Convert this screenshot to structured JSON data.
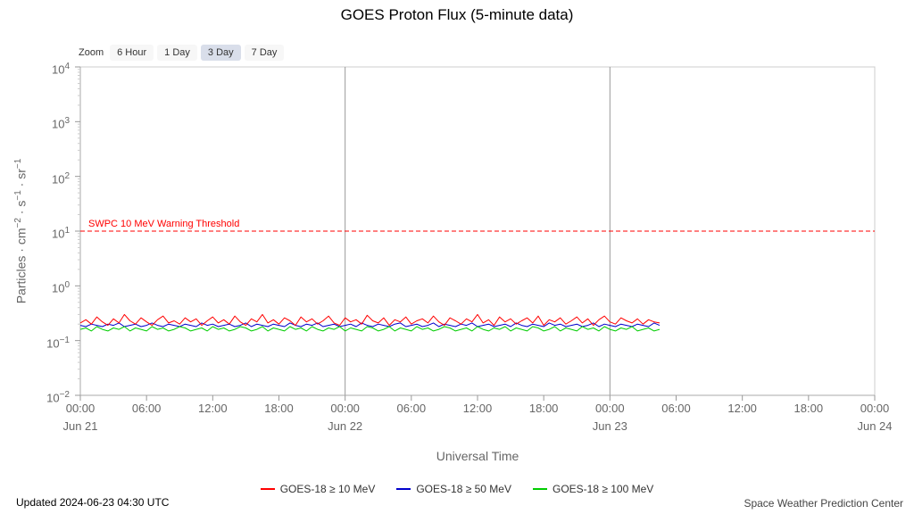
{
  "header": {
    "title": "GOES Proton Flux (5-minute data)"
  },
  "zoom": {
    "label": "Zoom",
    "buttons": [
      {
        "label": "6 Hour",
        "selected": false
      },
      {
        "label": "1 Day",
        "selected": false
      },
      {
        "label": "3 Day",
        "selected": true
      },
      {
        "label": "7 Day",
        "selected": false
      }
    ]
  },
  "footer": {
    "updated": "Updated 2024-06-23 04:30 UTC",
    "source": "Space Weather Prediction Center"
  },
  "chart_data": {
    "type": "line",
    "title": "GOES Proton Flux (5-minute data)",
    "xlabel": "Universal Time",
    "ylabel_tokens": [
      {
        "t": "Particles · cm"
      },
      {
        "t": "−2",
        "sup": true
      },
      {
        "t": " · s"
      },
      {
        "t": "−1",
        "sup": true
      },
      {
        "t": " · sr"
      },
      {
        "t": "−1",
        "sup": true
      }
    ],
    "y_scale": "log",
    "ylim": [
      0.01,
      10000
    ],
    "ylim_exp": [
      -2,
      4
    ],
    "y_ticks": [
      {
        "exp": 4
      },
      {
        "exp": 3
      },
      {
        "exp": 2
      },
      {
        "exp": 1
      },
      {
        "exp": 0
      },
      {
        "exp": -1
      },
      {
        "exp": -2
      }
    ],
    "x_range_hours": [
      0,
      72
    ],
    "x_tick_hours": [
      0,
      6,
      12,
      18,
      24,
      30,
      36,
      42,
      48,
      54,
      60,
      66,
      72
    ],
    "x_tick_labels": [
      "00:00",
      "06:00",
      "12:00",
      "18:00",
      "00:00",
      "06:00",
      "12:00",
      "18:00",
      "00:00",
      "06:00",
      "12:00",
      "18:00",
      "00:00"
    ],
    "x_date_ticks": [
      {
        "hour": 0,
        "label": "Jun 21"
      },
      {
        "hour": 24,
        "label": "Jun 22"
      },
      {
        "hour": 48,
        "label": "Jun 23"
      },
      {
        "hour": 72,
        "label": "Jun 24"
      }
    ],
    "day_gridlines_hours": [
      24,
      48
    ],
    "threshold": {
      "value": 10,
      "label": "SWPC 10 MeV Warning Threshold",
      "color": "#ff0000",
      "style": "dashed"
    },
    "legend_position": "bottom",
    "grid": "day-boundaries-only",
    "x_start_hours": 0,
    "x_step_hours": 0.5,
    "series": [
      {
        "name": "GOES-18 ≥ 10 MeV",
        "color": "#ff0000",
        "values": [
          0.21,
          0.24,
          0.2,
          0.27,
          0.22,
          0.19,
          0.25,
          0.21,
          0.3,
          0.23,
          0.2,
          0.26,
          0.22,
          0.19,
          0.24,
          0.28,
          0.21,
          0.23,
          0.2,
          0.26,
          0.22,
          0.25,
          0.19,
          0.23,
          0.27,
          0.21,
          0.24,
          0.2,
          0.28,
          0.22,
          0.19,
          0.25,
          0.22,
          0.3,
          0.21,
          0.24,
          0.2,
          0.26,
          0.23,
          0.19,
          0.27,
          0.22,
          0.25,
          0.2,
          0.23,
          0.28,
          0.21,
          0.19,
          0.26,
          0.22,
          0.24,
          0.2,
          0.29,
          0.23,
          0.21,
          0.26,
          0.19,
          0.24,
          0.22,
          0.27,
          0.2,
          0.23,
          0.25,
          0.21,
          0.28,
          0.22,
          0.19,
          0.26,
          0.23,
          0.2,
          0.25,
          0.22,
          0.3,
          0.21,
          0.24,
          0.19,
          0.27,
          0.22,
          0.25,
          0.2,
          0.23,
          0.26,
          0.21,
          0.28,
          0.19,
          0.24,
          0.22,
          0.26,
          0.2,
          0.23,
          0.27,
          0.21,
          0.25,
          0.19,
          0.24,
          0.28,
          0.22,
          0.2,
          0.26,
          0.23,
          0.21,
          0.25,
          0.2,
          0.24,
          0.22,
          0.21
        ]
      },
      {
        "name": "GOES-18 ≥ 50 MeV",
        "color": "#0000cc",
        "values": [
          0.19,
          0.18,
          0.2,
          0.19,
          0.18,
          0.2,
          0.19,
          0.21,
          0.18,
          0.19,
          0.2,
          0.18,
          0.19,
          0.21,
          0.19,
          0.18,
          0.2,
          0.19,
          0.18,
          0.2,
          0.19,
          0.18,
          0.21,
          0.19,
          0.2,
          0.18,
          0.19,
          0.2,
          0.18,
          0.19,
          0.21,
          0.18,
          0.2,
          0.19,
          0.18,
          0.2,
          0.19,
          0.18,
          0.21,
          0.19,
          0.18,
          0.2,
          0.19,
          0.21,
          0.18,
          0.19,
          0.2,
          0.18,
          0.19,
          0.2,
          0.18,
          0.21,
          0.19,
          0.18,
          0.2,
          0.19,
          0.18,
          0.2,
          0.21,
          0.18,
          0.19,
          0.2,
          0.18,
          0.19,
          0.21,
          0.18,
          0.2,
          0.19,
          0.18,
          0.2,
          0.19,
          0.21,
          0.18,
          0.19,
          0.2,
          0.18,
          0.19,
          0.2,
          0.18,
          0.21,
          0.19,
          0.18,
          0.2,
          0.19,
          0.18,
          0.21,
          0.19,
          0.2,
          0.18,
          0.19,
          0.2,
          0.18,
          0.19,
          0.21,
          0.18,
          0.2,
          0.19,
          0.18,
          0.2,
          0.19,
          0.18,
          0.2,
          0.19,
          0.18,
          0.21,
          0.19
        ]
      },
      {
        "name": "GOES-18 ≥ 100 MeV",
        "color": "#00cc00",
        "values": [
          0.16,
          0.17,
          0.15,
          0.18,
          0.16,
          0.15,
          0.17,
          0.16,
          0.18,
          0.15,
          0.17,
          0.16,
          0.15,
          0.18,
          0.16,
          0.17,
          0.15,
          0.16,
          0.18,
          0.17,
          0.15,
          0.16,
          0.17,
          0.15,
          0.18,
          0.16,
          0.17,
          0.15,
          0.16,
          0.18,
          0.17,
          0.15,
          0.16,
          0.18,
          0.15,
          0.17,
          0.16,
          0.15,
          0.18,
          0.16,
          0.17,
          0.15,
          0.18,
          0.16,
          0.15,
          0.17,
          0.16,
          0.18,
          0.15,
          0.17,
          0.16,
          0.15,
          0.18,
          0.17,
          0.15,
          0.16,
          0.18,
          0.15,
          0.17,
          0.16,
          0.15,
          0.18,
          0.16,
          0.17,
          0.15,
          0.16,
          0.18,
          0.17,
          0.15,
          0.16,
          0.17,
          0.15,
          0.18,
          0.16,
          0.15,
          0.17,
          0.16,
          0.18,
          0.15,
          0.17,
          0.16,
          0.15,
          0.18,
          0.17,
          0.15,
          0.16,
          0.18,
          0.15,
          0.17,
          0.16,
          0.15,
          0.18,
          0.16,
          0.17,
          0.15,
          0.18,
          0.16,
          0.15,
          0.17,
          0.16,
          0.18,
          0.15,
          0.16,
          0.17,
          0.15,
          0.16
        ]
      }
    ]
  }
}
